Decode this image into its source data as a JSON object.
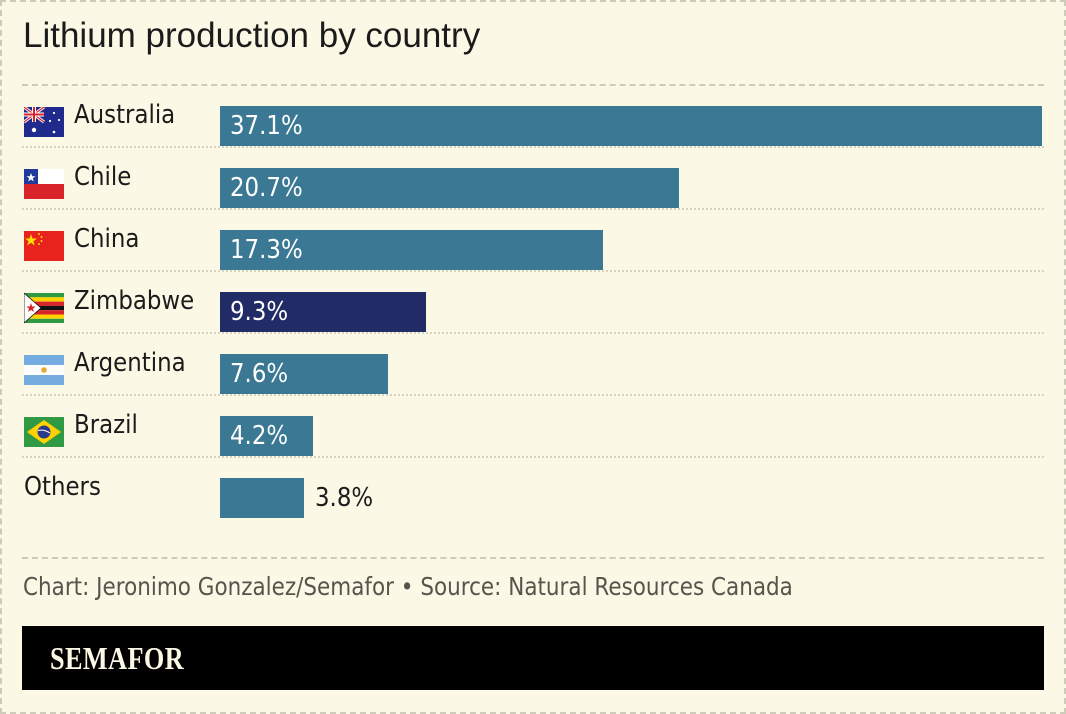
{
  "title": "Lithium production by country",
  "rows": [
    {
      "label": "Australia",
      "value": 37.1,
      "display": "37.1%",
      "flag": "australia-flag-icon",
      "highlight": false
    },
    {
      "label": "Chile",
      "value": 20.7,
      "display": "20.7%",
      "flag": "chile-flag-icon",
      "highlight": false
    },
    {
      "label": "China",
      "value": 17.3,
      "display": "17.3%",
      "flag": "china-flag-icon",
      "highlight": false
    },
    {
      "label": "Zimbabwe",
      "value": 9.3,
      "display": "9.3%",
      "flag": "zimbabwe-flag-icon",
      "highlight": true
    },
    {
      "label": "Argentina",
      "value": 7.6,
      "display": "7.6%",
      "flag": "argentina-flag-icon",
      "highlight": false
    },
    {
      "label": "Brazil",
      "value": 4.2,
      "display": "4.2%",
      "flag": "brazil-flag-icon",
      "highlight": false
    },
    {
      "label": "Others",
      "value": 3.8,
      "display": "3.8%",
      "flag": null,
      "highlight": false
    }
  ],
  "colors": {
    "bar": "#3a7894",
    "highlight": "#212b65",
    "background": "#fcf8e6"
  },
  "footer": {
    "note": "Chart: Jeronimo Gonzalez/Semafor • Source: Natural Resources Canada",
    "brand": "SEMAFOR"
  },
  "chart_data": {
    "type": "bar",
    "orientation": "horizontal",
    "title": "Lithium production by country",
    "categories": [
      "Australia",
      "Chile",
      "China",
      "Zimbabwe",
      "Argentina",
      "Brazil",
      "Others"
    ],
    "values": [
      37.1,
      20.7,
      17.3,
      9.3,
      7.6,
      4.2,
      3.8
    ],
    "unit": "%",
    "xlabel": "",
    "ylabel": "",
    "highlighted": [
      "Zimbabwe"
    ],
    "grid": false,
    "legend": null,
    "source": "Natural Resources Canada",
    "credit": "Chart: Jeronimo Gonzalez/Semafor"
  }
}
